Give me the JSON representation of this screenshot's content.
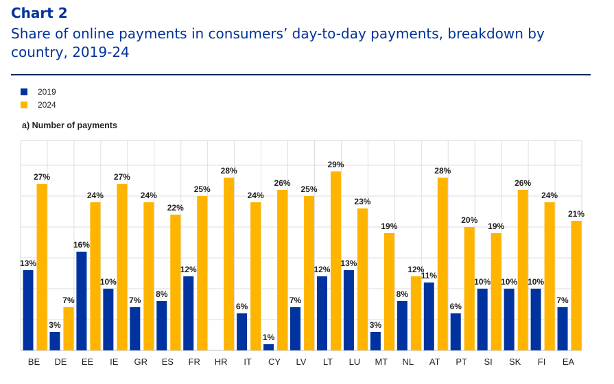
{
  "header": {
    "chart_number": "Chart 2",
    "title": "Share of online payments in consumers’ day-to-day payments, breakdown by country, 2019-24"
  },
  "colors": {
    "series_2019": "#0033a0",
    "series_2024": "#ffb400",
    "title_blue": "#003299"
  },
  "chart_data": {
    "type": "bar",
    "subtitle": "a) Number of payments",
    "categories": [
      "BE",
      "DE",
      "EE",
      "IE",
      "GR",
      "ES",
      "FR",
      "HR",
      "IT",
      "CY",
      "LV",
      "LT",
      "LU",
      "MT",
      "NL",
      "AT",
      "PT",
      "SI",
      "SK",
      "FI",
      "EA"
    ],
    "series": [
      {
        "name": "2019",
        "values": [
          13,
          3,
          16,
          10,
          7,
          8,
          12,
          null,
          6,
          1,
          7,
          12,
          13,
          3,
          8,
          11,
          6,
          10,
          10,
          10,
          7
        ]
      },
      {
        "name": "2024",
        "values": [
          27,
          7,
          24,
          27,
          24,
          22,
          25,
          28,
          24,
          26,
          25,
          29,
          23,
          19,
          12,
          28,
          20,
          19,
          26,
          24,
          21
        ]
      }
    ],
    "data_labels": {
      "2019": [
        "13%",
        "3%",
        "16%",
        "10%",
        "7%",
        "8%",
        "12%",
        "",
        "6%",
        "1%",
        "7%",
        "12%",
        "13%",
        "3%",
        "8%",
        "11%",
        "6%",
        "10%",
        "10%",
        "10%",
        "7%"
      ],
      "2024": [
        "27%",
        "7%",
        "24%",
        "27%",
        "24%",
        "22%",
        "25%",
        "28%",
        "24%",
        "26%",
        "25%",
        "29%",
        "23%",
        "19%",
        "12%",
        "28%",
        "20%",
        "19%",
        "26%",
        "24%",
        "21%"
      ]
    },
    "ylim": [
      0,
      33
    ],
    "grid": true,
    "legend_position": "top-left"
  }
}
